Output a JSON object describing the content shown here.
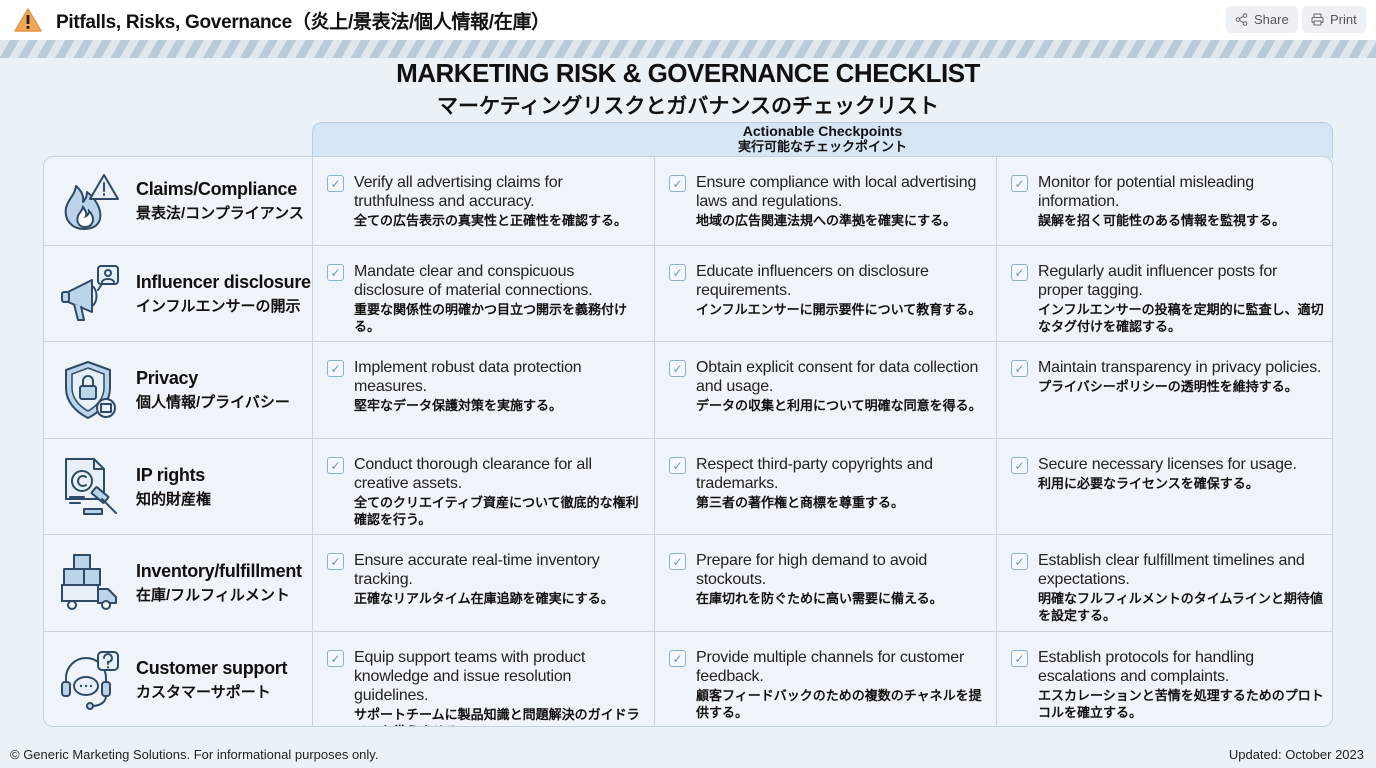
{
  "topbar": {
    "title": "Pitfalls, Risks, Governance（炎上/景表法/個人情報/在庫）",
    "icon": "warning-icon",
    "share": "Share",
    "print": "Print"
  },
  "heading": {
    "en": "MARKETING RISK & GOVERNANCE CHECKLIST",
    "jp": "マーケティングリスクとガバナンスのチェックリスト"
  },
  "column_header": {
    "en": "Actionable Checkpoints",
    "jp": "実行可能なチェックポイント"
  },
  "colors": {
    "accent": "#6f95b6",
    "header_bg": "#d6e6f4",
    "page_bg": "#eaf2f8"
  },
  "rows": [
    {
      "icon": "fire-warning-icon",
      "en": "Claims/Compliance",
      "jp": "景表法/コンプライアンス",
      "items": [
        {
          "en": "Verify all advertising claims for truthfulness and accuracy.",
          "jp": "全ての広告表示の真実性と正確性を確認する。"
        },
        {
          "en": "Ensure compliance with local advertising laws and regulations.",
          "jp": "地域の広告関連法規への準拠を確実にする。"
        },
        {
          "en": "Monitor for potential misleading information.",
          "jp": "誤解を招く可能性のある情報を監視する。"
        }
      ]
    },
    {
      "icon": "megaphone-icon",
      "en": "Influencer disclosure",
      "jp": "インフルエンサーの開示",
      "items": [
        {
          "en": "Mandate clear and conspicuous disclosure of material connections.",
          "jp": "重要な関係性の明確かつ目立つ開示を義務付ける。"
        },
        {
          "en": "Educate influencers on disclosure requirements.",
          "jp": "インフルエンサーに開示要件について教育する。"
        },
        {
          "en": "Regularly audit influencer posts for proper tagging.",
          "jp": "インフルエンサーの投稿を定期的に監査し、適切なタグ付けを確認する。"
        }
      ]
    },
    {
      "icon": "shield-lock-icon",
      "en": "Privacy",
      "jp": "個人情報/プライバシー",
      "items": [
        {
          "en": "Implement robust data protection measures.",
          "jp": "堅牢なデータ保護対策を実施する。"
        },
        {
          "en": "Obtain explicit consent for data collection and usage.",
          "jp": "データの収集と利用について明確な同意を得る。"
        },
        {
          "en": "Maintain transparency in privacy policies.",
          "jp": "プライバシーポリシーの透明性を維持する。"
        }
      ]
    },
    {
      "icon": "copyright-gavel-icon",
      "en": "IP rights",
      "jp": "知的財産権",
      "items": [
        {
          "en": "Conduct thorough clearance for all creative assets.",
          "jp": "全てのクリエイティブ資産について徹底的な権利確認を行う。"
        },
        {
          "en": "Respect third-party copyrights and trademarks.",
          "jp": "第三者の著作権と商標を尊重する。"
        },
        {
          "en": "Secure necessary licenses for usage.",
          "jp": "利用に必要なライセンスを確保する。"
        }
      ]
    },
    {
      "icon": "boxes-truck-icon",
      "en": "Inventory/fulfillment",
      "jp": "在庫/フルフィルメント",
      "items": [
        {
          "en": "Ensure accurate real-time inventory tracking.",
          "jp": "正確なリアルタイム在庫追跡を確実にする。"
        },
        {
          "en": "Prepare for high demand to avoid stockouts.",
          "jp": "在庫切れを防ぐために高い需要に備える。"
        },
        {
          "en": "Establish clear fulfillment timelines and expectations.",
          "jp": "明確なフルフィルメントのタイムラインと期待値を設定する。"
        }
      ]
    },
    {
      "icon": "headset-chat-icon",
      "en": "Customer support",
      "jp": "カスタマーサポート",
      "items": [
        {
          "en": "Equip support teams with product knowledge and issue resolution guidelines.",
          "jp": "サポートチームに製品知識と問題解決のガイドラインを備えさせる。"
        },
        {
          "en": "Provide multiple channels for customer feedback.",
          "jp": "顧客フィードバックのための複数のチャネルを提供する。"
        },
        {
          "en": "Establish protocols for handling escalations and complaints.",
          "jp": "エスカレーションと苦情を処理するためのプロトコルを確立する。"
        }
      ]
    }
  ],
  "footer": {
    "left": "© Generic Marketing Solutions. For informational purposes only.",
    "right": "Updated: October 2023"
  }
}
